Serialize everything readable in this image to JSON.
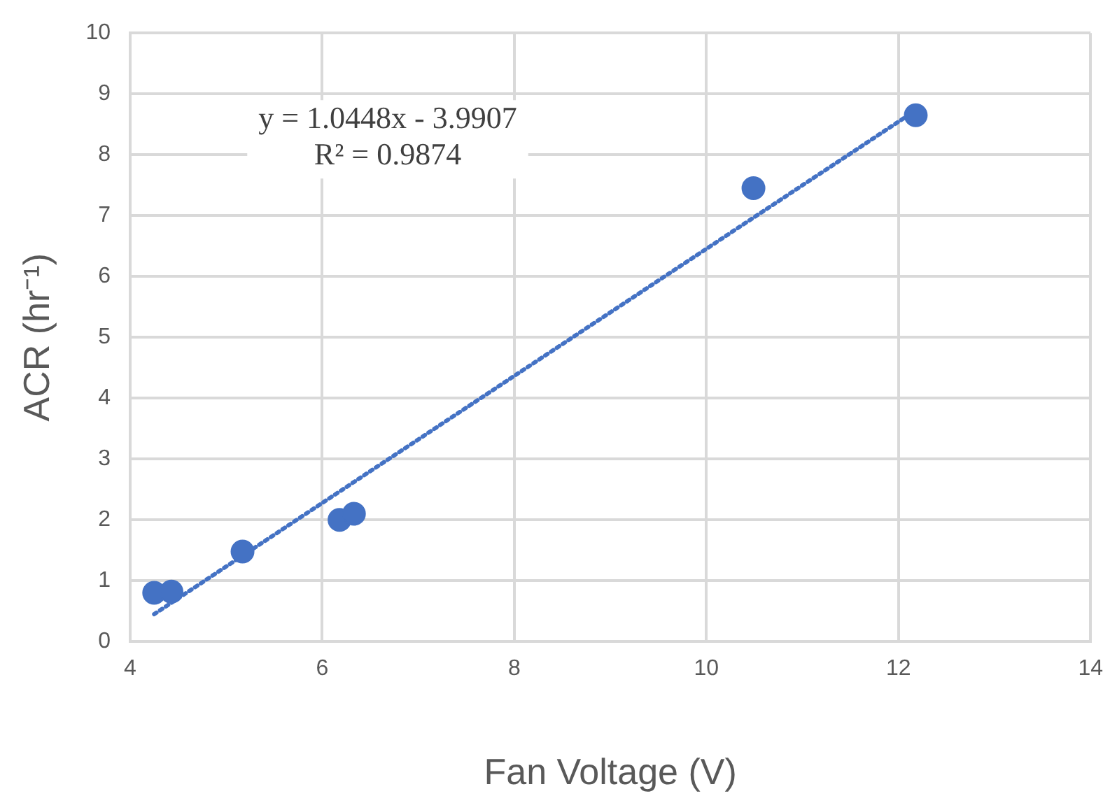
{
  "chart_data": {
    "type": "scatter",
    "xlabel": "Fan Voltage (V)",
    "ylabel": "ACR (hr⁻¹)",
    "x": [
      4.25,
      4.43,
      5.17,
      6.18,
      6.33,
      10.49,
      12.18
    ],
    "series": [
      {
        "color": "#4472c4",
        "values": [
          0.8,
          0.82,
          1.48,
          2.0,
          2.1,
          7.45,
          8.65
        ]
      },
      {
        "type": "line",
        "color": "#4472c4",
        "line_style": "dotted",
        "marker": "none",
        "x": [
          4.25,
          12.18
        ],
        "values": [
          0.45,
          8.73
        ]
      }
    ],
    "xlim": [
      4,
      14
    ],
    "xticks": [
      4,
      6,
      8,
      10,
      12,
      14
    ],
    "ylim": [
      0,
      10
    ],
    "yticks": [
      0,
      1,
      2,
      3,
      4,
      5,
      6,
      7,
      8,
      9,
      10
    ],
    "grid": true,
    "legend": false,
    "marker": "circle",
    "annotations": [
      "y = 1.0448x - 3.9907",
      "R² = 0.9874"
    ]
  }
}
